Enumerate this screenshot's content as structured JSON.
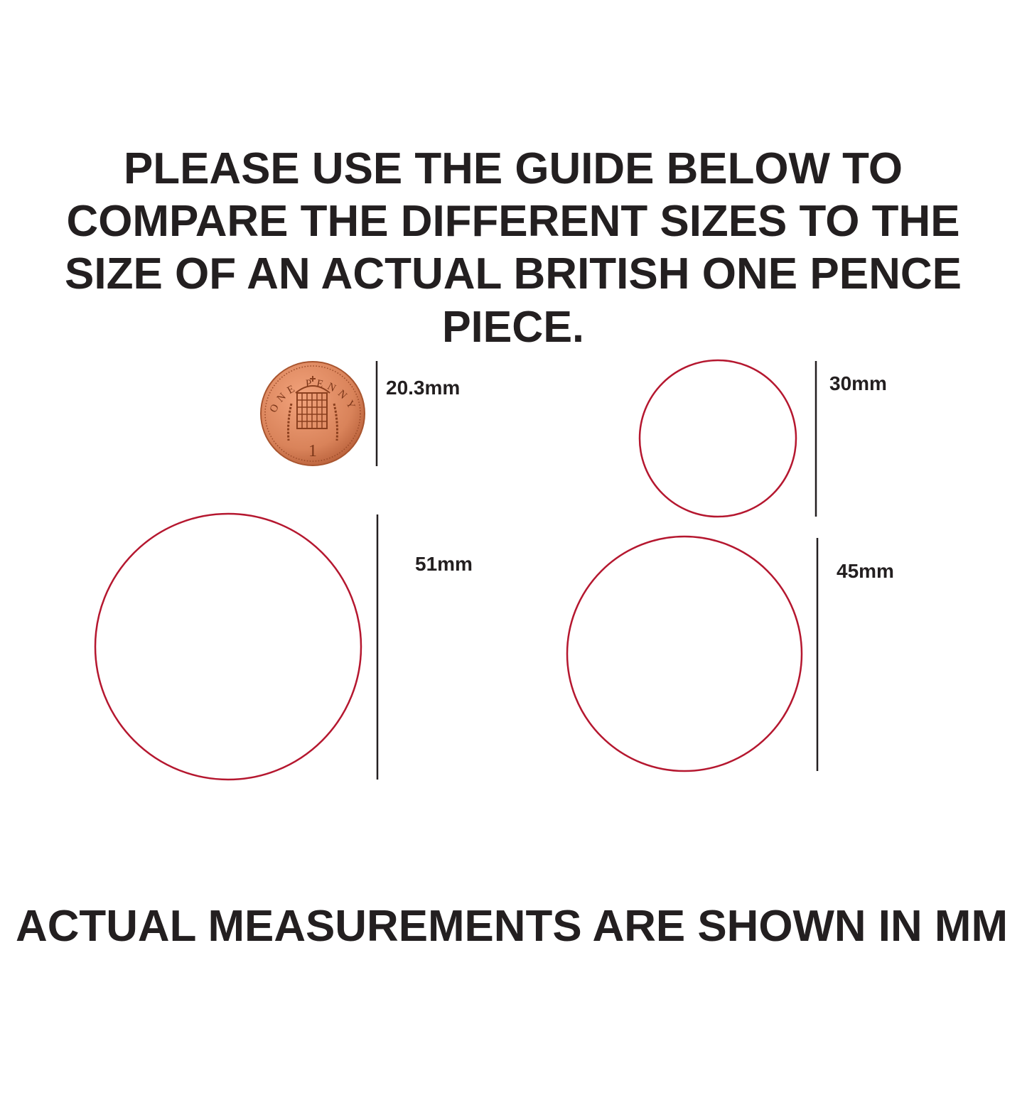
{
  "heading": {
    "lines": [
      "PLEASE USE THE GUIDE BELOW TO",
      "COMPARE THE DIFFERENT SIZES TO THE",
      "SIZE OF AN ACTUAL BRITISH ONE PENCE",
      "PIECE."
    ]
  },
  "coin": {
    "legend": "ONE PENNY",
    "value": "1",
    "label": "20.3mm"
  },
  "sizes": [
    {
      "label": "30mm"
    },
    {
      "label": "51mm"
    },
    {
      "label": "45mm"
    }
  ],
  "footer": "ACTUAL MEASUREMENTS ARE SHOWN IN MM",
  "colors": {
    "text": "#231f20",
    "circle": "#b5172f",
    "coin": "#d9835a"
  }
}
